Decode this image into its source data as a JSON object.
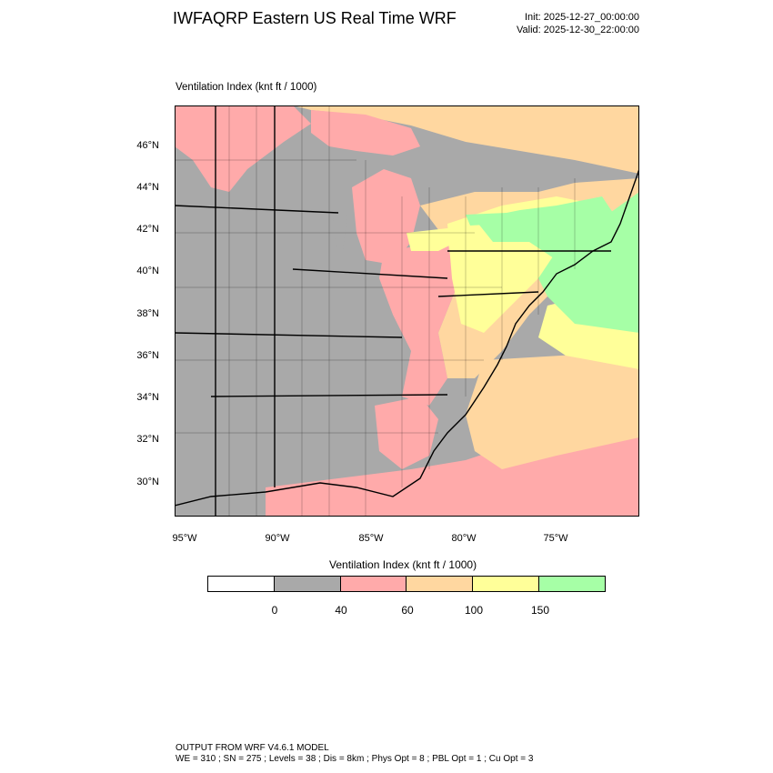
{
  "header": {
    "title": "IWFAQRP Eastern US Real Time WRF",
    "init": "Init: 2025-12-27_00:00:00",
    "valid": "Valid: 2025-12-30_22:00:00"
  },
  "map": {
    "field_label": "Ventilation Index   (knt ft / 1000)",
    "lat_labels": [
      "46°N",
      "44°N",
      "42°N",
      "40°N",
      "38°N",
      "36°N",
      "34°N",
      "32°N",
      "30°N"
    ],
    "lon_labels": [
      "95°W",
      "90°W",
      "85°W",
      "80°W",
      "75°W"
    ],
    "colors": {
      "land_low": "#a9a9a9",
      "pink": "#ffaaaa",
      "tan": "#ffd7a0",
      "yellow": "#ffff99",
      "green": "#a6ffa6",
      "water_white": "#ffffff"
    }
  },
  "legend": {
    "title": "Ventilation Index  (knt ft / 1000)",
    "swatches": [
      "#ffffff",
      "#a9a9a9",
      "#ffaaaa",
      "#ffd7a0",
      "#ffff99",
      "#a6ffa6"
    ],
    "tick_labels": [
      "0",
      "40",
      "60",
      "100",
      "150"
    ]
  },
  "footer": {
    "line1": "OUTPUT FROM WRF V4.6.1 MODEL",
    "line2": "WE = 310 ; SN = 275 ; Levels = 38 ; Dis = 8km ; Phys Opt = 8 ; PBL Opt = 1 ; Cu Opt = 3"
  }
}
